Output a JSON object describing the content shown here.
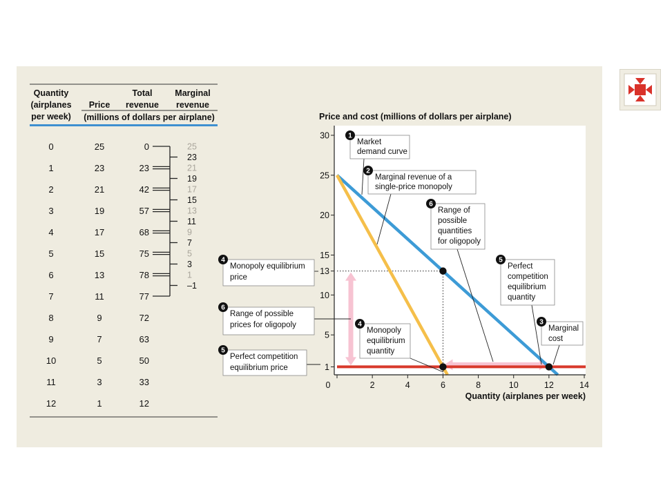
{
  "table": {
    "headers": {
      "quantity": [
        "Quantity",
        "(airplanes",
        "per week)"
      ],
      "price": "Price",
      "total_revenue": [
        "Total",
        "revenue"
      ],
      "marginal_revenue": [
        "Marginal",
        "revenue"
      ],
      "units": "(millions of dollars per airplane)"
    },
    "rows": [
      {
        "q": "0",
        "p": "25",
        "tr": "0"
      },
      {
        "q": "1",
        "p": "23",
        "tr": "23"
      },
      {
        "q": "2",
        "p": "21",
        "tr": "42"
      },
      {
        "q": "3",
        "p": "19",
        "tr": "57"
      },
      {
        "q": "4",
        "p": "17",
        "tr": "68"
      },
      {
        "q": "5",
        "p": "15",
        "tr": "75"
      },
      {
        "q": "6",
        "p": "13",
        "tr": "78"
      },
      {
        "q": "7",
        "p": "11",
        "tr": "77"
      },
      {
        "q": "8",
        "p": "9",
        "tr": "72"
      },
      {
        "q": "9",
        "p": "7",
        "tr": "63"
      },
      {
        "q": "10",
        "p": "5",
        "tr": "50"
      },
      {
        "q": "11",
        "p": "3",
        "tr": "33"
      },
      {
        "q": "12",
        "p": "1",
        "tr": "12"
      }
    ],
    "marginal_revenue_values": [
      {
        "value": "25",
        "style": "faded"
      },
      {
        "value": "23",
        "style": "bold"
      },
      {
        "value": "21",
        "style": "faded"
      },
      {
        "value": "19",
        "style": "bold"
      },
      {
        "value": "17",
        "style": "faded"
      },
      {
        "value": "15",
        "style": "bold"
      },
      {
        "value": "13",
        "style": "faded"
      },
      {
        "value": "11",
        "style": "bold"
      },
      {
        "value": "9",
        "style": "faded"
      },
      {
        "value": "7",
        "style": "bold"
      },
      {
        "value": "5",
        "style": "faded"
      },
      {
        "value": "3",
        "style": "bold"
      },
      {
        "value": "1",
        "style": "faded"
      },
      {
        "value": "–1",
        "style": "bold"
      }
    ]
  },
  "chart_data": {
    "type": "line",
    "title": "Price and cost (millions of dollars per airplane)",
    "xlabel": "Quantity (airplanes per week)",
    "ylabel": "Price and cost (millions of dollars per airplane)",
    "xlim": [
      0,
      14.5
    ],
    "ylim": [
      0,
      31
    ],
    "x_ticks": [
      0,
      2,
      4,
      6,
      8,
      10,
      12,
      14
    ],
    "y_ticks": [
      1,
      5,
      10,
      13,
      15,
      20,
      25,
      30
    ],
    "grid": false,
    "series": [
      {
        "name": "Market demand curve",
        "color": "#3d9bd6",
        "points": [
          [
            0,
            25
          ],
          [
            12.5,
            0
          ]
        ]
      },
      {
        "name": "Marginal revenue of a single-price monopoly",
        "color": "#f5bf4a",
        "points": [
          [
            0,
            25
          ],
          [
            6.25,
            0
          ]
        ]
      },
      {
        "name": "Marginal cost",
        "color": "#d8392b",
        "points": [
          [
            0,
            1
          ],
          [
            14.5,
            1
          ]
        ]
      }
    ],
    "points": [
      {
        "x": 6,
        "y": 13
      },
      {
        "x": 6,
        "y": 1
      },
      {
        "x": 12,
        "y": 1
      }
    ],
    "annotations": [
      {
        "id": "1",
        "lines": [
          "Market",
          "demand curve"
        ]
      },
      {
        "id": "2",
        "lines": [
          "Marginal revenue of a",
          "single-price monopoly"
        ]
      },
      {
        "id": "6",
        "lines": [
          "Range of",
          "possible",
          "quantities",
          "for oligopoly"
        ]
      },
      {
        "id": "5",
        "lines": [
          "Perfect",
          "competition",
          "equilibrium",
          "quantity"
        ]
      },
      {
        "id": "3",
        "lines": [
          "Marginal",
          "cost"
        ]
      },
      {
        "id": "4",
        "lines": [
          "Monopoly",
          "equilibrium",
          "quantity"
        ]
      },
      {
        "id": "4",
        "lines": [
          "Monopoly equilibrium",
          "price"
        ]
      },
      {
        "id": "6",
        "lines": [
          "Range of possible",
          "prices for oligopoly"
        ]
      },
      {
        "id": "5",
        "lines": [
          "Perfect competition",
          "equilibrium price"
        ]
      }
    ],
    "ranges": [
      {
        "axis": "y",
        "from": 1,
        "to": 13,
        "color": "#f7c3d2"
      },
      {
        "axis": "x",
        "from": 6,
        "to": 12,
        "color": "#f7c3d2"
      }
    ]
  }
}
